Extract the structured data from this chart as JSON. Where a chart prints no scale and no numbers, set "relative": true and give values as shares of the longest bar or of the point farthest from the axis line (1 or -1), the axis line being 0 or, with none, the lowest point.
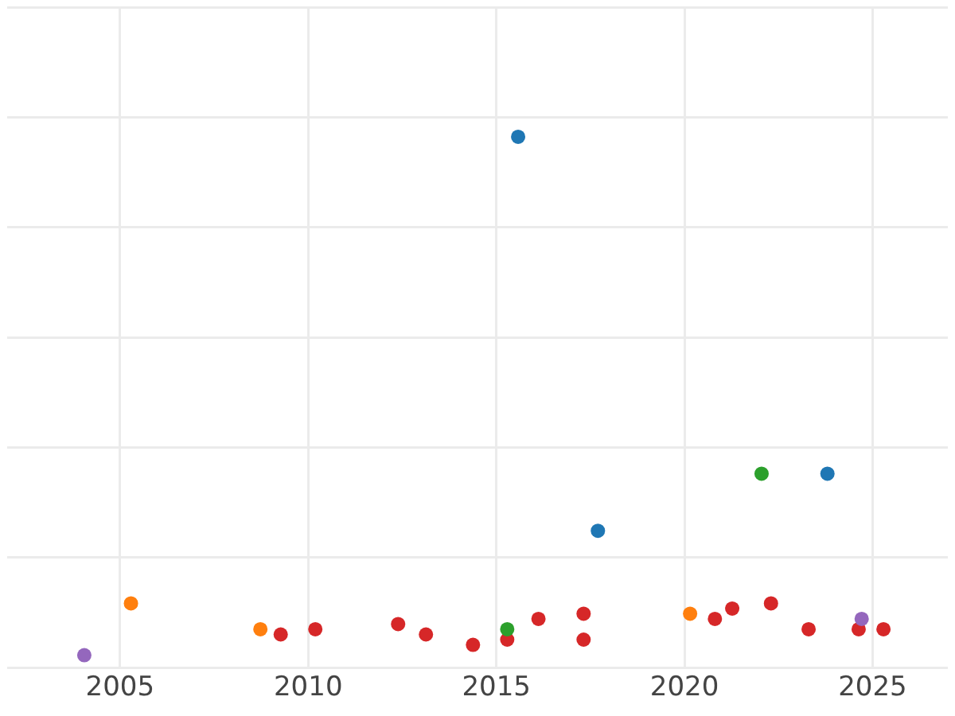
{
  "chart_data": {
    "type": "scatter",
    "relative": true,
    "xlim": [
      2002,
      2027
    ],
    "xticks": [
      2005,
      2010,
      2015,
      2020,
      2025
    ],
    "grid": true,
    "legend": false,
    "marker": "circle",
    "series": [
      {
        "color": "#1f77b4",
        "x": [
          2015.58,
          2017.7,
          2023.8
        ],
        "values": [
          1.0,
          0.24,
          0.35
        ]
      },
      {
        "color": "#2ca02c",
        "x": [
          2022.05,
          2015.29
        ],
        "values": [
          0.35,
          0.05
        ]
      },
      {
        "color": "#9467bd",
        "x": [
          2004.05,
          2024.71
        ],
        "values": [
          0.0,
          0.07
        ]
      },
      {
        "color": "#ff7f0e",
        "x": [
          2005.29,
          2008.73,
          2020.15
        ],
        "values": [
          0.1,
          0.05,
          0.08
        ]
      },
      {
        "color": "#d62728",
        "x": [
          2009.27,
          2010.19,
          2012.39,
          2013.13,
          2014.38,
          2015.29,
          2016.12,
          2017.32,
          2017.32,
          2020.81,
          2021.27,
          2022.3,
          2023.3,
          2024.63,
          2025.29
        ],
        "values": [
          0.04,
          0.05,
          0.06,
          0.04,
          0.02,
          0.03,
          0.07,
          0.08,
          0.03,
          0.07,
          0.09,
          0.1,
          0.05,
          0.05,
          0.05
        ]
      }
    ]
  }
}
